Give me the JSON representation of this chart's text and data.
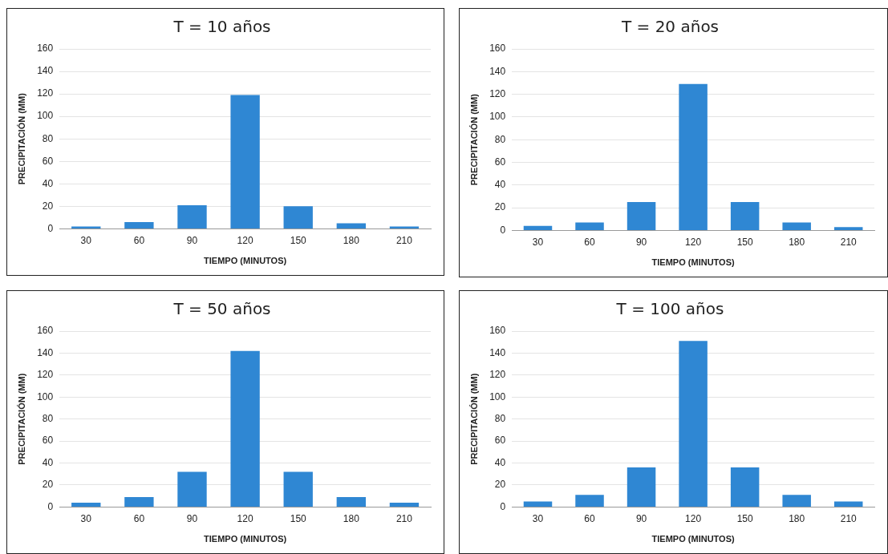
{
  "chart_data": [
    {
      "type": "bar",
      "title": "T = 10 años",
      "xlabel": "TIEMPO (MINUTOS)",
      "ylabel": "PRECIPITACIÓN (MM)",
      "categories": [
        "30",
        "60",
        "90",
        "120",
        "150",
        "180",
        "210"
      ],
      "values": [
        2,
        6,
        21,
        119,
        20,
        5,
        2
      ],
      "color": "#2f87d3",
      "ylim": [
        0,
        160
      ],
      "yticks": [
        0,
        20,
        40,
        60,
        80,
        100,
        120,
        140,
        160
      ],
      "grid": "y"
    },
    {
      "type": "bar",
      "title": "T = 20 años",
      "xlabel": "TIEMPO (MINUTOS)",
      "ylabel": "PRECIPITACIÓN (MM)",
      "categories": [
        "30",
        "60",
        "90",
        "120",
        "150",
        "180",
        "210"
      ],
      "values": [
        4,
        7,
        25,
        129,
        25,
        7,
        3
      ],
      "color": "#2f87d3",
      "ylim": [
        0,
        160
      ],
      "yticks": [
        0,
        20,
        40,
        60,
        80,
        100,
        120,
        140,
        160
      ],
      "grid": "y"
    },
    {
      "type": "bar",
      "title": "T = 50 años",
      "xlabel": "TIEMPO (MINUTOS)",
      "ylabel": "PRECIPITACIÓN (MM)",
      "categories": [
        "30",
        "60",
        "90",
        "120",
        "150",
        "180",
        "210"
      ],
      "values": [
        4,
        9,
        32,
        142,
        32,
        9,
        4
      ],
      "color": "#2f87d3",
      "ylim": [
        0,
        160
      ],
      "yticks": [
        0,
        20,
        40,
        60,
        80,
        100,
        120,
        140,
        160
      ],
      "grid": "y"
    },
    {
      "type": "bar",
      "title": "T = 100 años",
      "xlabel": "TIEMPO (MINUTOS)",
      "ylabel": "PRECIPITACIÓN (MM)",
      "categories": [
        "30",
        "60",
        "90",
        "120",
        "150",
        "180",
        "210"
      ],
      "values": [
        5,
        11,
        36,
        151,
        36,
        11,
        5
      ],
      "color": "#2f87d3",
      "ylim": [
        0,
        160
      ],
      "yticks": [
        0,
        20,
        40,
        60,
        80,
        100,
        120,
        140,
        160
      ],
      "grid": "y"
    }
  ]
}
